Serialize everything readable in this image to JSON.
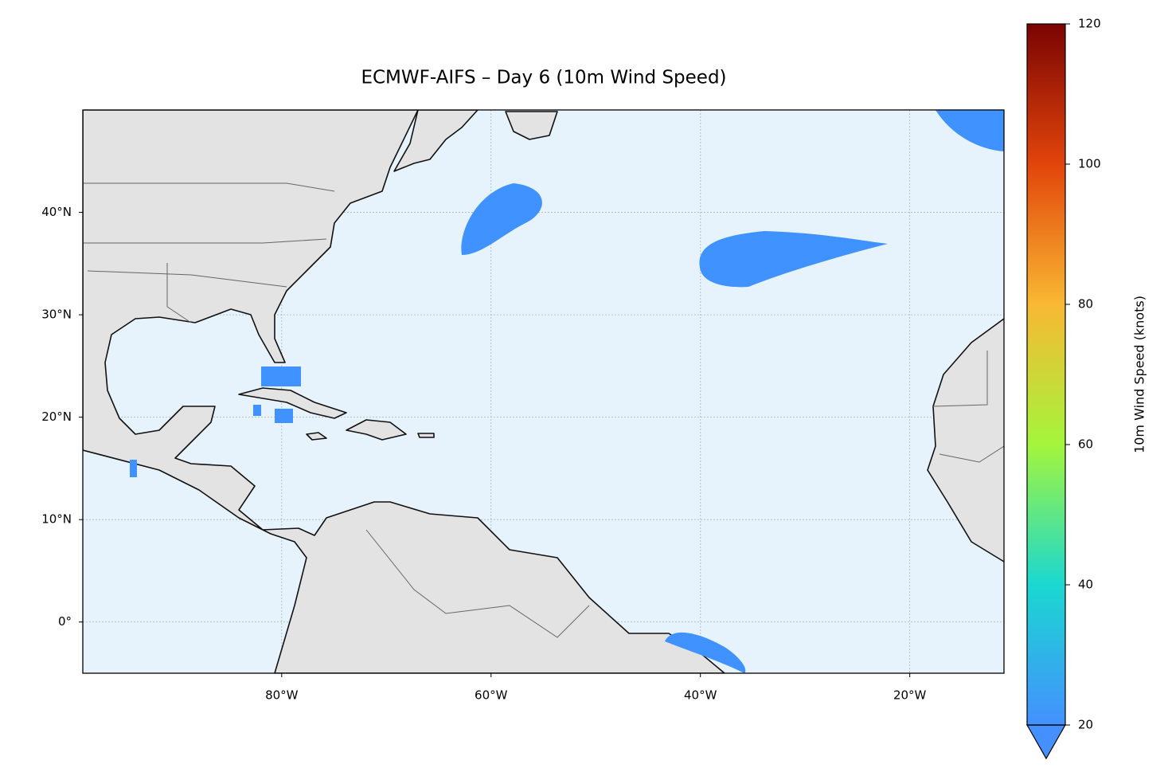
{
  "chart_data": {
    "type": "map",
    "title": "ECMWF-AIFS – Day 6 (10m Wind Speed)",
    "xlim": [
      -99,
      -11
    ],
    "ylim": [
      -5,
      50
    ],
    "xticks": [
      {
        "value": -80,
        "label": "80°W"
      },
      {
        "value": -60,
        "label": "60°W"
      },
      {
        "value": -40,
        "label": "40°W"
      },
      {
        "value": -20,
        "label": "20°W"
      }
    ],
    "yticks": [
      {
        "value": 0,
        "label": "0°"
      },
      {
        "value": 10,
        "label": "10°N"
      },
      {
        "value": 20,
        "label": "20°N"
      },
      {
        "value": 30,
        "label": "30°N"
      },
      {
        "value": 40,
        "label": "40°N"
      }
    ],
    "grid": true,
    "colorbar": {
      "label": "10m Wind Speed (knots)",
      "lim": [
        20,
        120
      ],
      "ticks": [
        20,
        40,
        60,
        80,
        100,
        120
      ]
    }
  }
}
